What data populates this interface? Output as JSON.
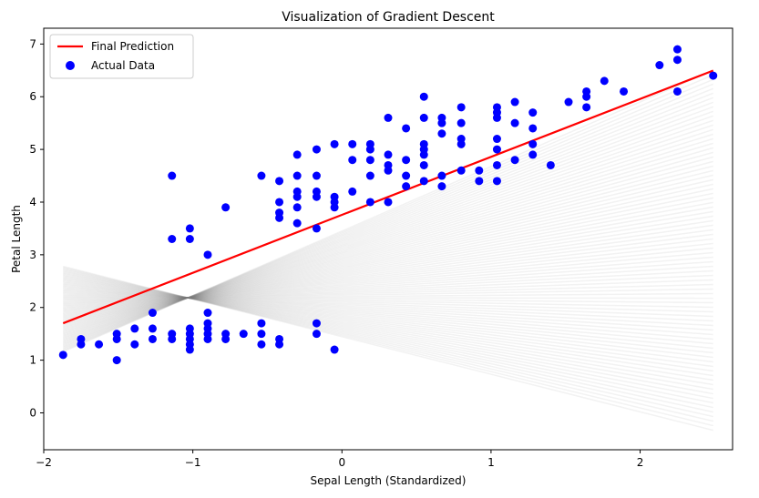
{
  "chart_data": {
    "type": "scatter",
    "title": "Visualization of Gradient Descent",
    "xlabel": "Sepal Length (Standardized)",
    "ylabel": "Petal Length",
    "xlim": [
      -2.0,
      2.62
    ],
    "ylim": [
      -0.7,
      7.3
    ],
    "xticks": [
      -2,
      -1,
      0,
      1,
      2
    ],
    "xtick_labels": [
      "−2",
      "−1",
      "0",
      "1",
      "2"
    ],
    "yticks": [
      0,
      1,
      2,
      3,
      4,
      5,
      6,
      7
    ],
    "ytick_labels": [
      "0",
      "1",
      "2",
      "3",
      "4",
      "5",
      "6",
      "7"
    ],
    "grid": false,
    "legend_position": "top-left",
    "colors": {
      "scatter": "#0000ff",
      "final": "#ff0000",
      "iterations": "#808080"
    },
    "series": [
      {
        "name": "Actual Data",
        "kind": "scatter",
        "points": [
          [
            -1.87,
            1.1
          ],
          [
            -1.75,
            1.3
          ],
          [
            -1.75,
            1.4
          ],
          [
            -1.63,
            1.3
          ],
          [
            -1.51,
            1.0
          ],
          [
            -1.51,
            1.4
          ],
          [
            -1.51,
            1.5
          ],
          [
            -1.39,
            1.3
          ],
          [
            -1.39,
            1.6
          ],
          [
            -1.27,
            1.4
          ],
          [
            -1.27,
            1.6
          ],
          [
            -1.27,
            1.9
          ],
          [
            -1.14,
            1.4
          ],
          [
            -1.14,
            1.5
          ],
          [
            -1.14,
            3.3
          ],
          [
            -1.14,
            4.5
          ],
          [
            -1.02,
            1.2
          ],
          [
            -1.02,
            1.3
          ],
          [
            -1.02,
            1.4
          ],
          [
            -1.02,
            1.5
          ],
          [
            -1.02,
            1.6
          ],
          [
            -1.02,
            3.3
          ],
          [
            -1.02,
            3.5
          ],
          [
            -0.9,
            1.4
          ],
          [
            -0.9,
            1.5
          ],
          [
            -0.9,
            1.6
          ],
          [
            -0.9,
            1.7
          ],
          [
            -0.9,
            1.9
          ],
          [
            -0.9,
            3.0
          ],
          [
            -0.78,
            1.4
          ],
          [
            -0.78,
            1.5
          ],
          [
            -0.78,
            3.9
          ],
          [
            -0.66,
            1.5
          ],
          [
            -0.54,
            1.3
          ],
          [
            -0.54,
            1.5
          ],
          [
            -0.54,
            1.7
          ],
          [
            -0.54,
            4.5
          ],
          [
            -0.42,
            1.3
          ],
          [
            -0.42,
            1.4
          ],
          [
            -0.42,
            3.7
          ],
          [
            -0.42,
            3.8
          ],
          [
            -0.42,
            4.0
          ],
          [
            -0.42,
            4.4
          ],
          [
            -0.3,
            3.6
          ],
          [
            -0.3,
            3.9
          ],
          [
            -0.3,
            4.1
          ],
          [
            -0.3,
            4.2
          ],
          [
            -0.3,
            4.5
          ],
          [
            -0.3,
            4.9
          ],
          [
            -0.17,
            1.5
          ],
          [
            -0.17,
            1.7
          ],
          [
            -0.17,
            3.5
          ],
          [
            -0.17,
            4.1
          ],
          [
            -0.17,
            4.2
          ],
          [
            -0.17,
            4.5
          ],
          [
            -0.17,
            5.0
          ],
          [
            -0.05,
            1.2
          ],
          [
            -0.05,
            3.9
          ],
          [
            -0.05,
            4.0
          ],
          [
            -0.05,
            4.1
          ],
          [
            -0.05,
            5.1
          ],
          [
            0.07,
            4.2
          ],
          [
            0.07,
            4.8
          ],
          [
            0.07,
            5.1
          ],
          [
            0.19,
            4.0
          ],
          [
            0.19,
            4.5
          ],
          [
            0.19,
            4.8
          ],
          [
            0.19,
            5.0
          ],
          [
            0.19,
            5.1
          ],
          [
            0.31,
            4.0
          ],
          [
            0.31,
            4.6
          ],
          [
            0.31,
            4.7
          ],
          [
            0.31,
            4.9
          ],
          [
            0.31,
            5.6
          ],
          [
            0.43,
            4.3
          ],
          [
            0.43,
            4.5
          ],
          [
            0.43,
            4.8
          ],
          [
            0.43,
            5.4
          ],
          [
            0.55,
            4.4
          ],
          [
            0.55,
            4.7
          ],
          [
            0.55,
            4.9
          ],
          [
            0.55,
            5.0
          ],
          [
            0.55,
            5.1
          ],
          [
            0.55,
            5.6
          ],
          [
            0.55,
            6.0
          ],
          [
            0.67,
            4.3
          ],
          [
            0.67,
            4.5
          ],
          [
            0.67,
            5.3
          ],
          [
            0.67,
            5.5
          ],
          [
            0.67,
            5.6
          ],
          [
            0.8,
            4.6
          ],
          [
            0.8,
            5.1
          ],
          [
            0.8,
            5.2
          ],
          [
            0.8,
            5.5
          ],
          [
            0.8,
            5.8
          ],
          [
            0.92,
            4.4
          ],
          [
            0.92,
            4.6
          ],
          [
            1.04,
            4.4
          ],
          [
            1.04,
            4.7
          ],
          [
            1.04,
            5.0
          ],
          [
            1.04,
            5.2
          ],
          [
            1.04,
            5.6
          ],
          [
            1.04,
            5.7
          ],
          [
            1.04,
            5.8
          ],
          [
            1.16,
            4.8
          ],
          [
            1.16,
            5.5
          ],
          [
            1.16,
            5.9
          ],
          [
            1.28,
            4.9
          ],
          [
            1.28,
            5.1
          ],
          [
            1.28,
            5.4
          ],
          [
            1.28,
            5.7
          ],
          [
            1.4,
            4.7
          ],
          [
            1.52,
            5.9
          ],
          [
            1.64,
            5.8
          ],
          [
            1.64,
            6.0
          ],
          [
            1.64,
            6.1
          ],
          [
            1.76,
            6.3
          ],
          [
            1.89,
            6.1
          ],
          [
            2.13,
            6.6
          ],
          [
            2.25,
            6.1
          ],
          [
            2.25,
            6.7
          ],
          [
            2.25,
            6.9
          ],
          [
            2.49,
            6.4
          ]
        ]
      },
      {
        "name": "Final Prediction",
        "kind": "line",
        "x_range": [
          -1.87,
          2.49
        ],
        "intercept": 3.758,
        "slope": 1.1
      }
    ],
    "iteration_lines": {
      "count": 80,
      "x_range": [
        -1.87,
        2.49
      ],
      "y_at_start": [
        2.78,
        1.16
      ],
      "y_at_end": [
        -0.33,
        6.5
      ]
    }
  }
}
